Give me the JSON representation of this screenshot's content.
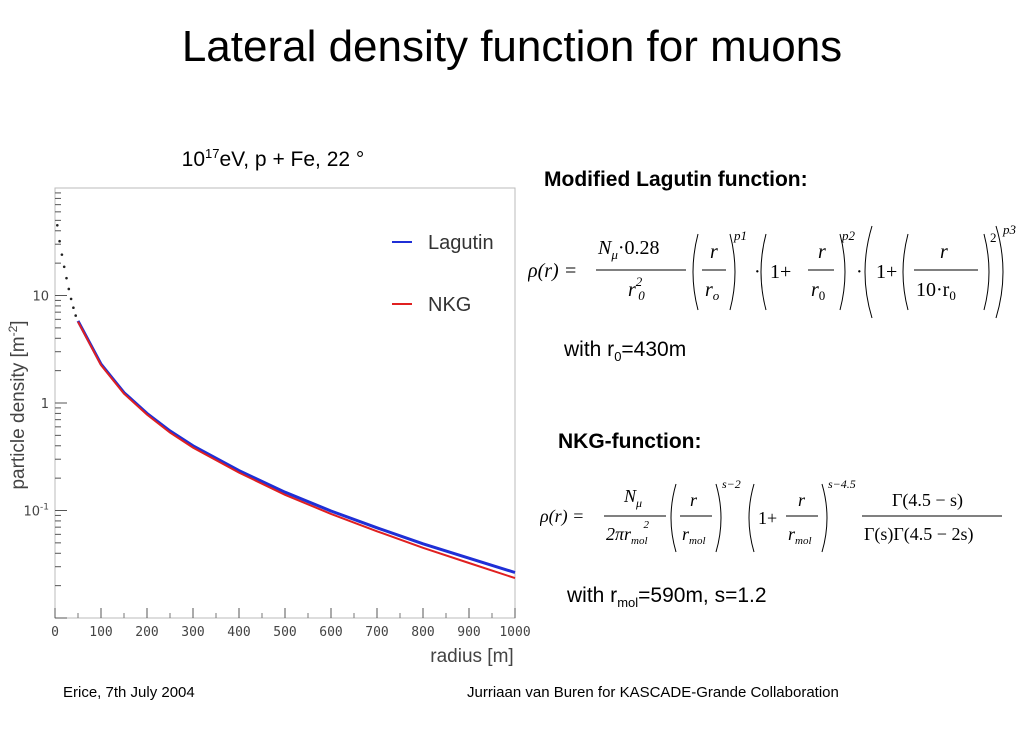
{
  "slide": {
    "title": "Lateral density function for muons",
    "subtitle_base": "10",
    "subtitle_exp": "17",
    "subtitle_rest": "eV, p + Fe, 22 °"
  },
  "chart_data": {
    "type": "line",
    "xlabel": "radius [m]",
    "ylabel": "particle density [m",
    "ylabel_sup": "-2",
    "ylabel_end": "]",
    "xlim": [
      0,
      1000
    ],
    "ylim": [
      0.01,
      100
    ],
    "y_scale": "log",
    "x_ticks": [
      "0",
      "100",
      "200",
      "300",
      "400",
      "500",
      "600",
      "700",
      "800",
      "900",
      "1000"
    ],
    "y_ticks": [
      {
        "label": "10",
        "sup": "",
        "value": 10
      },
      {
        "label": "1",
        "sup": "",
        "value": 1
      },
      {
        "label": "10",
        "sup": "-1",
        "value": 0.1
      }
    ],
    "legend_position": "top-right",
    "series": [
      {
        "name": "Lagutin",
        "color": "#1f2fd6",
        "x": [
          50,
          100,
          150,
          200,
          250,
          300,
          400,
          500,
          600,
          700,
          800,
          900,
          1000
        ],
        "y": [
          5.8,
          2.3,
          1.25,
          0.8,
          0.55,
          0.4,
          0.235,
          0.148,
          0.099,
          0.069,
          0.049,
          0.036,
          0.0265
        ]
      },
      {
        "name": "NKG",
        "color": "#e02020",
        "x": [
          50,
          100,
          150,
          200,
          250,
          300,
          400,
          500,
          600,
          700,
          800,
          900,
          1000
        ],
        "y": [
          5.7,
          2.25,
          1.22,
          0.78,
          0.53,
          0.385,
          0.225,
          0.14,
          0.093,
          0.064,
          0.045,
          0.0325,
          0.0235
        ]
      },
      {
        "name": "",
        "color": "#222222",
        "x": [
          5,
          10,
          15,
          20,
          25,
          30,
          35,
          40,
          45
        ],
        "y": [
          45,
          32,
          24,
          18.5,
          14.5,
          11.5,
          9.3,
          7.7,
          6.5
        ]
      }
    ]
  },
  "lagutin": {
    "heading": "Modified Lagutin function:",
    "note_prefix": "with r",
    "note_sub": "0",
    "note_suffix": "=430m",
    "formula": {
      "lhs": "ρ(r) =",
      "num": "N",
      "num_sub": "μ",
      "num_rest": "·0.28",
      "den": "r",
      "den_sup": "2",
      "den_sub": "0",
      "t1_num": "r",
      "t1_den": "r",
      "t1_den_sub": "o",
      "p1": "p1",
      "dot": "·",
      "one": "1+",
      "t2_num": "r",
      "t2_den": "r",
      "t2_den_sub": "0",
      "p2": "p2",
      "t3_num": "r",
      "t3_den": "10·r",
      "t3_den_sub": "0",
      "sq": "2",
      "p3": "p3"
    }
  },
  "nkg": {
    "heading": "NKG-function:",
    "note_prefix": "with r",
    "note_sub": "mol",
    "note_suffix": "=590m, s=1.2",
    "formula": {
      "lhs": "ρ(r) =",
      "num": "N",
      "num_sub": "μ",
      "den": "2πr",
      "den_sub": "mol",
      "den_sup": "2",
      "t1_num": "r",
      "t1_den": "r",
      "t1_den_sub": "mol",
      "e1": "s−2",
      "one": "1+",
      "t2_num": "r",
      "t2_den": "r",
      "t2_den_sub": "mol",
      "e2": "s−4.5",
      "g_num": "Γ(4.5 − s)",
      "g_den": "Γ(s)Γ(4.5 − 2s)"
    }
  },
  "footer": {
    "left": "Erice, 7th July 2004",
    "right": "Jurriaan van Buren for KASCADE-Grande Collaboration"
  }
}
